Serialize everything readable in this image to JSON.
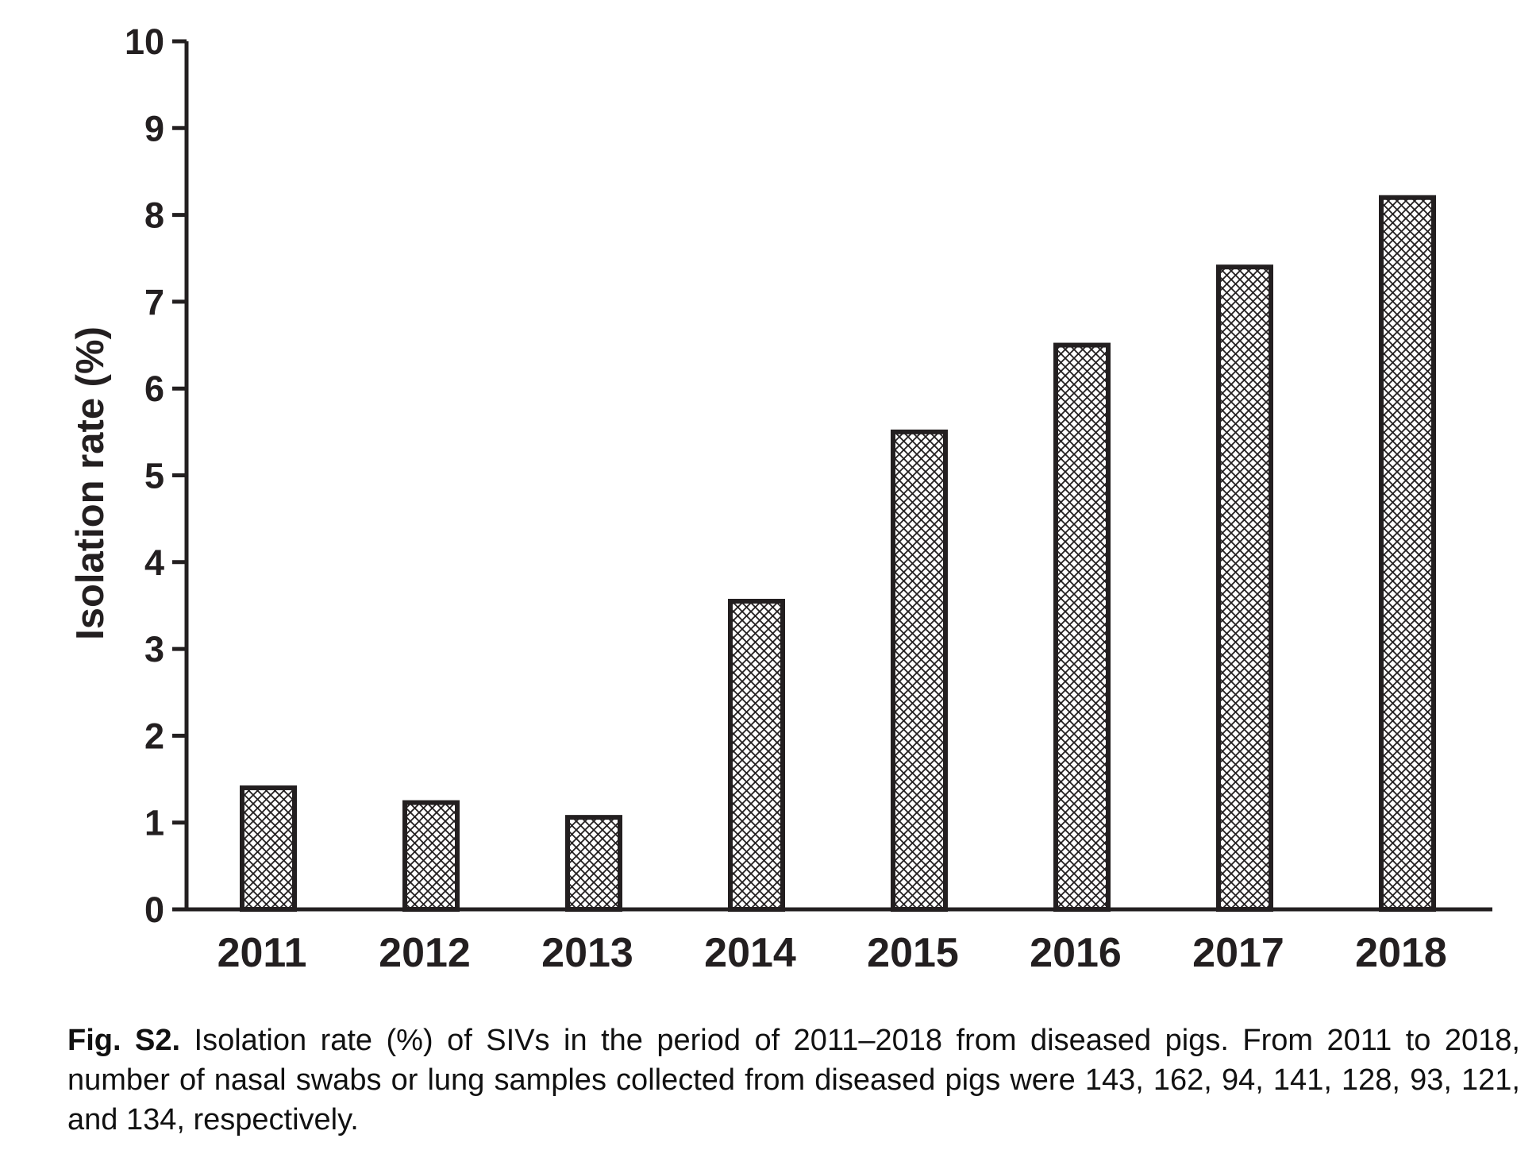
{
  "chart_data": {
    "type": "bar",
    "categories": [
      "2011",
      "2012",
      "2013",
      "2014",
      "2015",
      "2016",
      "2017",
      "2018"
    ],
    "values": [
      1.4,
      1.23,
      1.06,
      3.55,
      5.5,
      6.5,
      7.4,
      8.2
    ],
    "title": "",
    "xlabel": "",
    "ylabel": "Isolation rate (%)",
    "ylim": [
      0,
      10
    ],
    "yticks": [
      "0",
      "1",
      "2",
      "3",
      "4",
      "5",
      "6",
      "7",
      "8",
      "9",
      "10"
    ],
    "bar_fill": "crosshatch",
    "colors": {
      "axis": "#231f20",
      "bar_outline": "#231f20",
      "hatch": "#231f20",
      "background": "#ffffff"
    },
    "grid": false,
    "legend": "none"
  },
  "caption": {
    "label": "Fig. S2.",
    "text": "Isolation rate (%) of SIVs in the period of 2011–2018 from diseased pigs. From 2011 to 2018, number of nasal swabs or lung samples collected from diseased pigs were 143, 162, 94, 141, 128, 93, 121, and 134, respectively."
  }
}
